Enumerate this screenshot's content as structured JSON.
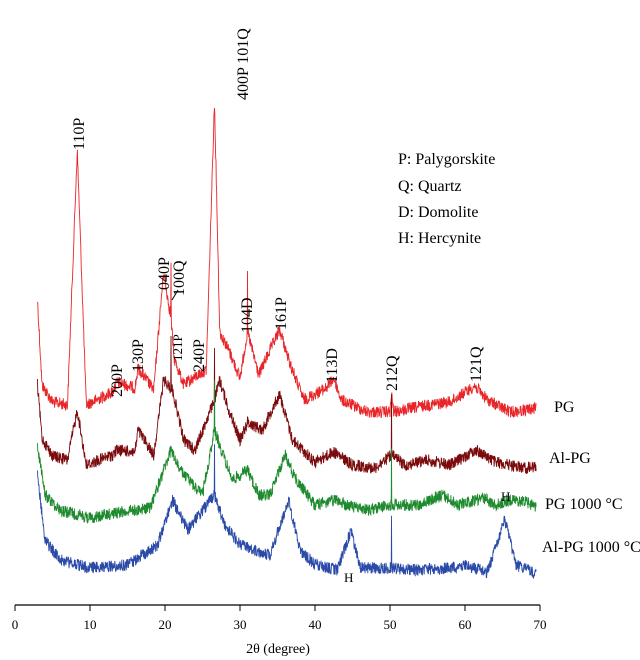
{
  "chart_data": {
    "type": "line",
    "title": "",
    "xlabel": "2θ (degree)",
    "ylabel": "",
    "xlim": [
      0,
      70
    ],
    "x_ticks": [
      "0",
      "10",
      "20",
      "30",
      "40",
      "50",
      "60",
      "70"
    ],
    "legend_box": [
      "P: Palygorskite",
      "Q: Quartz",
      "D: Domolite",
      "H: Hercynite"
    ],
    "series": [
      {
        "name": "PG",
        "color": "#e8262a",
        "baseline": 410,
        "profile": [
          [
            3,
            300
          ],
          [
            3.6,
            385
          ],
          [
            5,
            402
          ],
          [
            7,
            405
          ],
          [
            8.3,
            150
          ],
          [
            9.5,
            405
          ],
          [
            13,
            392
          ],
          [
            13.6,
            382
          ],
          [
            16,
            388
          ],
          [
            16.4,
            368
          ],
          [
            18.5,
            390
          ],
          [
            19.8,
            272
          ],
          [
            20.8,
            318
          ],
          [
            21.2,
            358
          ],
          [
            22.5,
            385
          ],
          [
            24.2,
            376
          ],
          [
            25.5,
            370
          ],
          [
            26.6,
            100
          ],
          [
            27.3,
            332
          ],
          [
            28.5,
            350
          ],
          [
            30,
            378
          ],
          [
            31,
            332
          ],
          [
            32.5,
            375
          ],
          [
            34,
            350
          ],
          [
            35.3,
            330
          ],
          [
            36.5,
            360
          ],
          [
            38.5,
            400
          ],
          [
            41.5,
            388
          ],
          [
            42.5,
            378
          ],
          [
            43.5,
            400
          ],
          [
            47,
            412
          ],
          [
            50,
            412
          ],
          [
            50.2,
            395
          ],
          [
            50.5,
            412
          ],
          [
            55,
            405
          ],
          [
            58,
            402
          ],
          [
            61.3,
            386
          ],
          [
            63,
            400
          ],
          [
            66,
            412
          ],
          [
            68,
            410
          ],
          [
            69.5,
            408
          ]
        ]
      },
      {
        "name": "Al-PG",
        "color": "#7a0a0c",
        "baseline": 468,
        "profile": [
          [
            3,
            385
          ],
          [
            3.6,
            438
          ],
          [
            5,
            456
          ],
          [
            7,
            460
          ],
          [
            8.3,
            410
          ],
          [
            9.5,
            465
          ],
          [
            13,
            455
          ],
          [
            13.6,
            450
          ],
          [
            16,
            452
          ],
          [
            16.4,
            430
          ],
          [
            18.5,
            455
          ],
          [
            19.8,
            380
          ],
          [
            21,
            390
          ],
          [
            22.5,
            440
          ],
          [
            24,
            450
          ],
          [
            26.6,
            400
          ],
          [
            27.3,
            380
          ],
          [
            28.5,
            410
          ],
          [
            30,
            440
          ],
          [
            31,
            422
          ],
          [
            33,
            430
          ],
          [
            34.5,
            405
          ],
          [
            35.3,
            395
          ],
          [
            37,
            440
          ],
          [
            40,
            462
          ],
          [
            42.5,
            452
          ],
          [
            45,
            465
          ],
          [
            48,
            468
          ],
          [
            50.2,
            455
          ],
          [
            52,
            465
          ],
          [
            55,
            460
          ],
          [
            58,
            465
          ],
          [
            61.5,
            450
          ],
          [
            64,
            462
          ],
          [
            66,
            465
          ],
          [
            68,
            468
          ],
          [
            69.5,
            467
          ]
        ]
      },
      {
        "name": "PG 1000 °C",
        "color": "#1e8a2e",
        "baseline": 515,
        "profile": [
          [
            3,
            445
          ],
          [
            4,
            495
          ],
          [
            6,
            510
          ],
          [
            10,
            518
          ],
          [
            14,
            512
          ],
          [
            18,
            508
          ],
          [
            20.8,
            450
          ],
          [
            22,
            470
          ],
          [
            25,
            495
          ],
          [
            26.6,
            430
          ],
          [
            27.5,
            450
          ],
          [
            29,
            480
          ],
          [
            31,
            470
          ],
          [
            32.5,
            495
          ],
          [
            34,
            495
          ],
          [
            36,
            455
          ],
          [
            37.5,
            480
          ],
          [
            40,
            505
          ],
          [
            43,
            500
          ],
          [
            44,
            505
          ],
          [
            47,
            510
          ],
          [
            50,
            505
          ],
          [
            54,
            505
          ],
          [
            57,
            495
          ],
          [
            59,
            505
          ],
          [
            62.5,
            498
          ],
          [
            64,
            505
          ],
          [
            66,
            500
          ],
          [
            68,
            502
          ],
          [
            69.5,
            506
          ]
        ]
      },
      {
        "name": "Al-PG 1000 °C",
        "color": "#2a4aa8",
        "baseline": 575,
        "profile": [
          [
            3,
            475
          ],
          [
            4,
            540
          ],
          [
            6,
            560
          ],
          [
            10,
            568
          ],
          [
            15,
            565
          ],
          [
            19,
            545
          ],
          [
            21,
            500
          ],
          [
            23,
            530
          ],
          [
            26.6,
            495
          ],
          [
            28,
            525
          ],
          [
            30,
            545
          ],
          [
            32,
            550
          ],
          [
            34,
            555
          ],
          [
            36.5,
            500
          ],
          [
            38,
            550
          ],
          [
            40,
            565
          ],
          [
            43,
            570
          ],
          [
            44.8,
            530
          ],
          [
            46,
            568
          ],
          [
            50,
            568
          ],
          [
            54,
            570
          ],
          [
            58,
            568
          ],
          [
            60,
            565
          ],
          [
            63,
            572
          ],
          [
            65.3,
            520
          ],
          [
            66.8,
            565
          ],
          [
            68,
            568
          ],
          [
            69.5,
            575
          ]
        ]
      }
    ],
    "spikes": [
      {
        "series": "PG",
        "x": [
          26.6,
          20.8,
          31.0
        ]
      },
      {
        "series": "Al-PG",
        "x": [
          26.6,
          20.8,
          50.2
        ]
      },
      {
        "series": "PG 1000 °C",
        "x": [
          26.6,
          50.2
        ]
      },
      {
        "series": "Al-PG 1000 °C",
        "x": [
          26.6,
          50.2
        ]
      }
    ],
    "peak_labels": [
      {
        "text": "110P",
        "x": 8.3
      },
      {
        "text": "400P 101Q",
        "x": 26.6
      },
      {
        "text": "040P",
        "x": 19.8
      },
      {
        "text": "100Q",
        "x": 21.0
      },
      {
        "text": "200P",
        "x": 13.4
      },
      {
        "text": "130P",
        "x": 16.4
      },
      {
        "text": "121P",
        "x": 21.5
      },
      {
        "text": "240P",
        "x": 24.4
      },
      {
        "text": "104D",
        "x": 31.0
      },
      {
        "text": "161P",
        "x": 35.3
      },
      {
        "text": "113D",
        "x": 42.5
      },
      {
        "text": "212Q",
        "x": 50.2
      },
      {
        "text": "121Q",
        "x": 61.3
      }
    ],
    "h_labels": [
      "H",
      "H"
    ]
  }
}
